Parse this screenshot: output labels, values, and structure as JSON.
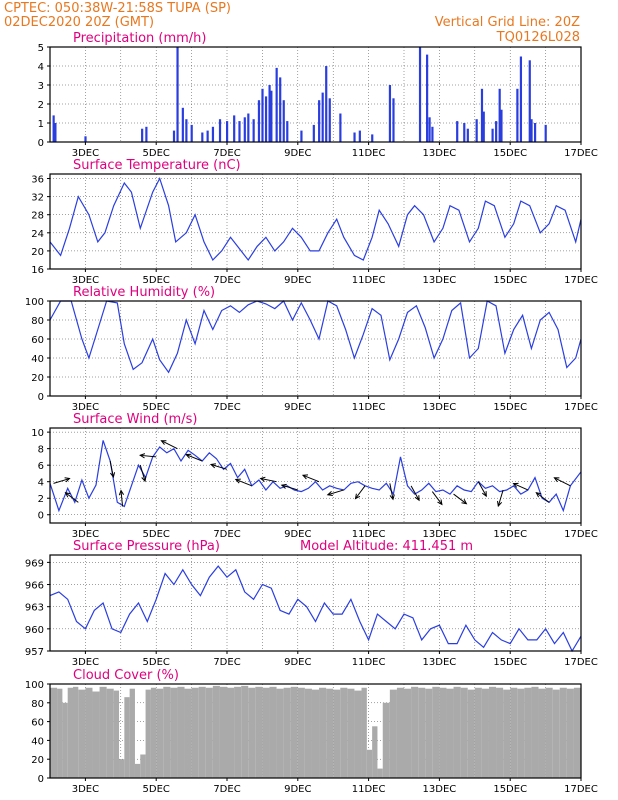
{
  "header": {
    "left_line1": "CPTEC:   050:38W-21:58S   TUPA (SP)",
    "left_line2": "02DEC2020  20Z (GMT)",
    "right_line1": "Vertical Grid Line: 20Z",
    "right_line2": "TQ0126L028"
  },
  "colors": {
    "header_text": "#e87820",
    "panel_title": "#e0007f",
    "series_line": "#2a3ee0",
    "precip_bar": "#2a3ee0",
    "cloud_fill": "#aaaaaa",
    "wind_arrow": "#000000"
  },
  "x_tick_labels": [
    "3DEC",
    "5DEC",
    "7DEC",
    "9DEC",
    "11DEC",
    "13DEC",
    "15DEC",
    "17DEC"
  ],
  "chart_data": [
    {
      "type": "bar",
      "title": "Precipitation (mm/h)",
      "ylim": [
        0,
        5
      ],
      "yticks": [
        0,
        1,
        2,
        3,
        4,
        5
      ],
      "xlim": [
        2.0,
        17.0
      ],
      "x": [
        2.1,
        2.15,
        3.0,
        4.6,
        4.72,
        5.5,
        5.6,
        5.75,
        5.85,
        6.0,
        6.3,
        6.45,
        6.6,
        6.8,
        7.0,
        7.2,
        7.35,
        7.5,
        7.6,
        7.75,
        7.9,
        8.0,
        8.1,
        8.2,
        8.25,
        8.4,
        8.5,
        8.6,
        8.7,
        9.1,
        9.45,
        9.6,
        9.7,
        9.8,
        9.9,
        10.2,
        10.6,
        10.75,
        11.1,
        11.6,
        11.7,
        12.45,
        12.65,
        12.72,
        12.8,
        13.5,
        13.7,
        13.8,
        14.05,
        14.2,
        14.25,
        14.5,
        14.6,
        14.7,
        14.75,
        15.2,
        15.3,
        15.55,
        15.6,
        15.7,
        16.0
      ],
      "values": [
        1.4,
        1.0,
        0.3,
        0.7,
        0.8,
        0.6,
        5.0,
        1.8,
        1.2,
        0.9,
        0.5,
        0.6,
        0.8,
        1.2,
        1.1,
        1.4,
        1.1,
        1.3,
        1.5,
        1.2,
        2.2,
        2.8,
        2.4,
        3.0,
        2.7,
        3.9,
        3.4,
        2.2,
        1.1,
        0.6,
        0.9,
        2.2,
        2.6,
        4.0,
        2.3,
        1.5,
        0.5,
        0.6,
        0.4,
        3.0,
        2.3,
        5.0,
        4.6,
        1.3,
        0.8,
        1.1,
        1.0,
        0.7,
        1.2,
        2.8,
        1.6,
        0.7,
        1.1,
        2.8,
        1.7,
        2.8,
        4.5,
        4.3,
        1.2,
        1.0,
        0.9
      ]
    },
    {
      "type": "line",
      "title": "Surface Temperature (nC)",
      "ylim": [
        16,
        37
      ],
      "yticks": [
        16,
        20,
        24,
        28,
        32,
        36
      ],
      "xlim": [
        2.0,
        17.0
      ],
      "x": [
        2.0,
        2.3,
        2.55,
        2.8,
        3.1,
        3.35,
        3.55,
        3.8,
        4.1,
        4.3,
        4.55,
        4.9,
        5.1,
        5.35,
        5.55,
        5.85,
        6.1,
        6.35,
        6.6,
        6.85,
        7.1,
        7.3,
        7.6,
        7.85,
        8.1,
        8.35,
        8.6,
        8.85,
        9.1,
        9.35,
        9.6,
        9.85,
        10.1,
        10.3,
        10.6,
        10.85,
        11.1,
        11.3,
        11.55,
        11.85,
        12.1,
        12.3,
        12.55,
        12.85,
        13.1,
        13.3,
        13.55,
        13.85,
        14.1,
        14.3,
        14.55,
        14.85,
        15.1,
        15.3,
        15.55,
        15.85,
        16.1,
        16.3,
        16.55,
        16.85,
        17.0
      ],
      "values": [
        22,
        19,
        25,
        32,
        28,
        22,
        24,
        30,
        35,
        33,
        25,
        33,
        36,
        30,
        22,
        24,
        28,
        22,
        18,
        20,
        23,
        21,
        18,
        21,
        23,
        20,
        22,
        25,
        23,
        20,
        20,
        24,
        27,
        23,
        19,
        18,
        23,
        29,
        26,
        21,
        28,
        30,
        28,
        22,
        25,
        30,
        29,
        22,
        25,
        31,
        30,
        23,
        26,
        31,
        30,
        24,
        26,
        30,
        29,
        22,
        27
      ]
    },
    {
      "type": "line",
      "title": "Relative Humidity (%)",
      "ylim": [
        0,
        100
      ],
      "yticks": [
        0,
        20,
        40,
        60,
        80,
        100
      ],
      "xlim": [
        2.0,
        17.0
      ],
      "x": [
        2.0,
        2.3,
        2.6,
        2.9,
        3.1,
        3.35,
        3.6,
        3.9,
        4.1,
        4.35,
        4.6,
        4.9,
        5.1,
        5.35,
        5.6,
        5.85,
        6.1,
        6.35,
        6.6,
        6.85,
        7.1,
        7.35,
        7.6,
        7.85,
        8.1,
        8.35,
        8.6,
        8.85,
        9.1,
        9.35,
        9.6,
        9.85,
        10.1,
        10.35,
        10.6,
        10.85,
        11.1,
        11.35,
        11.6,
        11.85,
        12.1,
        12.35,
        12.6,
        12.85,
        13.1,
        13.35,
        13.6,
        13.85,
        14.1,
        14.35,
        14.6,
        14.85,
        15.1,
        15.35,
        15.6,
        15.85,
        16.1,
        16.35,
        16.6,
        16.85,
        17.0
      ],
      "values": [
        80,
        100,
        100,
        60,
        40,
        70,
        100,
        98,
        55,
        28,
        35,
        60,
        38,
        25,
        45,
        80,
        55,
        90,
        70,
        90,
        95,
        88,
        96,
        100,
        97,
        92,
        100,
        80,
        98,
        80,
        60,
        100,
        95,
        70,
        40,
        65,
        92,
        85,
        38,
        60,
        88,
        95,
        72,
        40,
        60,
        90,
        98,
        40,
        50,
        100,
        95,
        45,
        70,
        85,
        50,
        80,
        88,
        70,
        30,
        40,
        60
      ]
    },
    {
      "type": "line",
      "title": "Surface Wind (m/s)",
      "ylim": [
        -1,
        10.5
      ],
      "yticks": [
        0,
        2,
        4,
        6,
        8,
        10
      ],
      "xlim": [
        2.0,
        17.0
      ],
      "x": [
        2.0,
        2.25,
        2.5,
        2.7,
        2.9,
        3.1,
        3.3,
        3.5,
        3.7,
        3.9,
        4.1,
        4.3,
        4.5,
        4.7,
        4.9,
        5.1,
        5.3,
        5.5,
        5.7,
        5.9,
        6.1,
        6.3,
        6.5,
        6.7,
        6.9,
        7.1,
        7.3,
        7.5,
        7.7,
        7.9,
        8.1,
        8.3,
        8.5,
        8.7,
        8.9,
        9.1,
        9.3,
        9.5,
        9.7,
        9.9,
        10.1,
        10.3,
        10.5,
        10.7,
        10.9,
        11.1,
        11.3,
        11.5,
        11.7,
        11.9,
        12.1,
        12.3,
        12.5,
        12.7,
        12.9,
        13.1,
        13.3,
        13.5,
        13.7,
        13.9,
        14.1,
        14.3,
        14.5,
        14.7,
        14.9,
        15.1,
        15.3,
        15.5,
        15.7,
        15.9,
        16.1,
        16.3,
        16.5,
        16.7,
        17.0
      ],
      "values": [
        3.8,
        0.5,
        3.2,
        1.5,
        4.2,
        2.0,
        3.6,
        9.0,
        6.5,
        1.5,
        1.0,
        3.5,
        6.0,
        4.5,
        7.0,
        8.2,
        7.5,
        8.0,
        6.5,
        7.8,
        7.2,
        6.5,
        7.5,
        6.8,
        5.5,
        6.2,
        4.5,
        5.5,
        3.5,
        4.2,
        3.0,
        4.0,
        3.2,
        3.5,
        3.0,
        2.8,
        3.2,
        4.0,
        3.0,
        3.5,
        3.2,
        3.0,
        3.8,
        4.0,
        3.5,
        3.2,
        3.0,
        3.8,
        2.5,
        7.0,
        3.5,
        2.5,
        3.0,
        3.8,
        2.8,
        3.0,
        2.5,
        3.5,
        3.0,
        2.8,
        4.0,
        3.2,
        3.5,
        2.8,
        3.0,
        3.5,
        2.5,
        3.0,
        4.5,
        2.0,
        1.5,
        2.5,
        0.5,
        3.5,
        5.2
      ],
      "arrows": [
        {
          "x": 2.1,
          "u": 1.0,
          "v": 0.3
        },
        {
          "x": 2.8,
          "u": -0.8,
          "v": 0.6
        },
        {
          "x": 3.7,
          "u": 0.2,
          "v": -1.0
        },
        {
          "x": 4.05,
          "u": -0.1,
          "v": 1.0
        },
        {
          "x": 4.55,
          "u": 0.3,
          "v": -1.0
        },
        {
          "x": 5.0,
          "u": -1.0,
          "v": 0.1
        },
        {
          "x": 5.6,
          "u": -1.0,
          "v": 0.5
        },
        {
          "x": 6.3,
          "u": -1.0,
          "v": 0.4
        },
        {
          "x": 7.0,
          "u": -1.0,
          "v": 0.3
        },
        {
          "x": 7.7,
          "u": -1.0,
          "v": 0.4
        },
        {
          "x": 8.4,
          "u": -1.0,
          "v": 0.2
        },
        {
          "x": 9.0,
          "u": -1.0,
          "v": 0.3
        },
        {
          "x": 9.6,
          "u": -1.0,
          "v": 0.4
        },
        {
          "x": 10.3,
          "u": -1.0,
          "v": -0.3
        },
        {
          "x": 10.9,
          "u": -0.6,
          "v": -0.8
        },
        {
          "x": 11.6,
          "u": 0.2,
          "v": -1.0
        },
        {
          "x": 12.2,
          "u": 0.5,
          "v": -0.9
        },
        {
          "x": 12.8,
          "u": 0.6,
          "v": -0.8
        },
        {
          "x": 13.4,
          "u": 0.8,
          "v": -0.6
        },
        {
          "x": 14.1,
          "u": 0.5,
          "v": -0.9
        },
        {
          "x": 14.8,
          "u": -0.3,
          "v": -1.0
        },
        {
          "x": 15.5,
          "u": -0.9,
          "v": 0.4
        },
        {
          "x": 16.1,
          "u": -0.8,
          "v": 0.6
        },
        {
          "x": 16.7,
          "u": -1.0,
          "v": 0.5
        }
      ]
    },
    {
      "type": "line",
      "title": "Surface Pressure (hPa)",
      "annotation": "Model Altitude: 411.451 m",
      "ylim": [
        957,
        970
      ],
      "yticks": [
        957,
        960,
        963,
        966,
        969
      ],
      "xlim": [
        2.0,
        17.0
      ],
      "x": [
        2.0,
        2.25,
        2.5,
        2.75,
        3.0,
        3.25,
        3.5,
        3.75,
        4.0,
        4.25,
        4.5,
        4.75,
        5.0,
        5.25,
        5.5,
        5.75,
        6.0,
        6.25,
        6.5,
        6.75,
        7.0,
        7.25,
        7.5,
        7.75,
        8.0,
        8.25,
        8.5,
        8.75,
        9.0,
        9.25,
        9.5,
        9.75,
        10.0,
        10.25,
        10.5,
        10.75,
        11.0,
        11.25,
        11.5,
        11.75,
        12.0,
        12.25,
        12.5,
        12.75,
        13.0,
        13.25,
        13.5,
        13.75,
        14.0,
        14.25,
        14.5,
        14.75,
        15.0,
        15.25,
        15.5,
        15.75,
        16.0,
        16.25,
        16.5,
        16.75,
        17.0
      ],
      "values": [
        964.5,
        965.0,
        964.0,
        961.0,
        960.0,
        962.5,
        963.5,
        960.0,
        959.5,
        962.0,
        963.5,
        961.0,
        964.0,
        967.5,
        966.0,
        968.0,
        966.0,
        964.5,
        967.0,
        968.5,
        967.0,
        968.0,
        965.0,
        964.0,
        966.0,
        965.5,
        962.5,
        962.0,
        964.0,
        963.0,
        961.0,
        963.5,
        962.0,
        962.0,
        964.0,
        961.0,
        958.5,
        962.0,
        961.0,
        960.0,
        962.0,
        961.5,
        958.5,
        960.0,
        960.5,
        958.0,
        958.0,
        960.5,
        958.5,
        957.5,
        959.5,
        958.5,
        958.0,
        960.0,
        958.5,
        958.5,
        960.0,
        958.0,
        959.5,
        957.0,
        959.0
      ]
    },
    {
      "type": "area",
      "title": "Cloud Cover (%)",
      "ylim": [
        0,
        100
      ],
      "yticks": [
        0,
        20,
        40,
        60,
        80,
        100
      ],
      "xlim": [
        2.0,
        17.0
      ],
      "x": [
        2.0,
        2.2,
        2.35,
        2.5,
        2.65,
        2.8,
        3.0,
        3.2,
        3.4,
        3.6,
        3.8,
        3.95,
        4.1,
        4.25,
        4.4,
        4.55,
        4.7,
        4.85,
        5.0,
        5.2,
        5.4,
        5.6,
        5.8,
        6.0,
        6.2,
        6.4,
        6.6,
        6.8,
        7.0,
        7.2,
        7.4,
        7.6,
        7.8,
        8.0,
        8.2,
        8.4,
        8.6,
        8.8,
        9.0,
        9.2,
        9.4,
        9.6,
        9.8,
        10.0,
        10.2,
        10.4,
        10.6,
        10.8,
        10.95,
        11.1,
        11.25,
        11.4,
        11.6,
        11.8,
        12.0,
        12.2,
        12.4,
        12.6,
        12.8,
        13.0,
        13.2,
        13.4,
        13.6,
        13.8,
        14.0,
        14.2,
        14.4,
        14.6,
        14.8,
        15.0,
        15.2,
        15.4,
        15.6,
        15.8,
        16.0,
        16.2,
        16.4,
        16.6,
        16.8,
        17.0
      ],
      "values": [
        96,
        95,
        80,
        96,
        97,
        94,
        96,
        92,
        97,
        95,
        93,
        20,
        86,
        95,
        15,
        25,
        94,
        96,
        95,
        97,
        96,
        97,
        95,
        96,
        97,
        96,
        98,
        97,
        96,
        97,
        98,
        96,
        97,
        96,
        97,
        95,
        96,
        97,
        96,
        95,
        94,
        96,
        95,
        94,
        96,
        95,
        93,
        96,
        30,
        55,
        10,
        80,
        94,
        96,
        95,
        97,
        96,
        95,
        97,
        96,
        95,
        97,
        96,
        94,
        96,
        95,
        97,
        96,
        94,
        96,
        95,
        96,
        97,
        95,
        96,
        94,
        96,
        95,
        96,
        95
      ]
    }
  ]
}
